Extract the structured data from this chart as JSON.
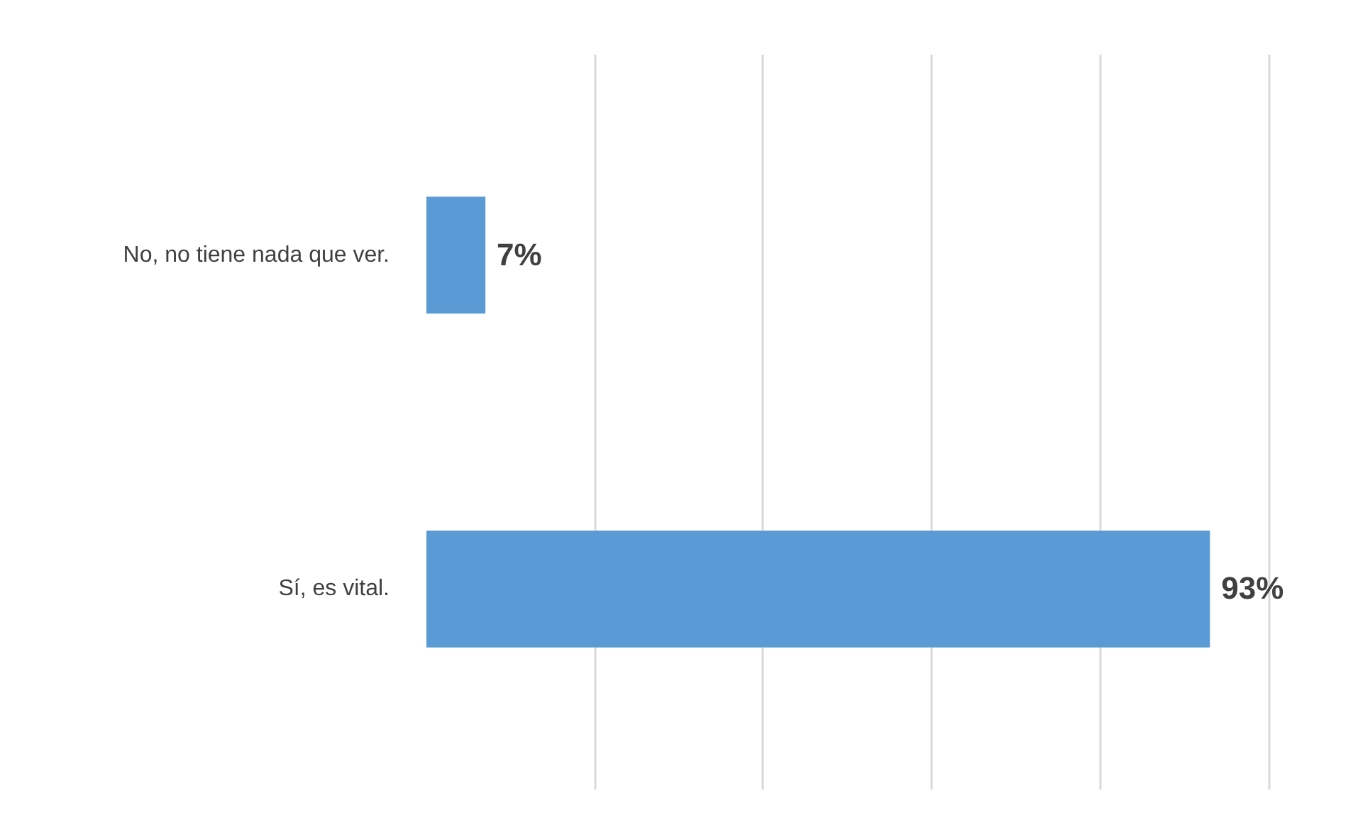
{
  "chart_data": {
    "type": "bar",
    "orientation": "horizontal",
    "categories": [
      "No, no tiene nada que ver.",
      "Sí, es vital."
    ],
    "values": [
      7,
      93
    ],
    "color": "#5b9bd5",
    "value_labels": [
      "7%",
      "93%"
    ],
    "grid": "x",
    "tick_labels": "y"
  }
}
